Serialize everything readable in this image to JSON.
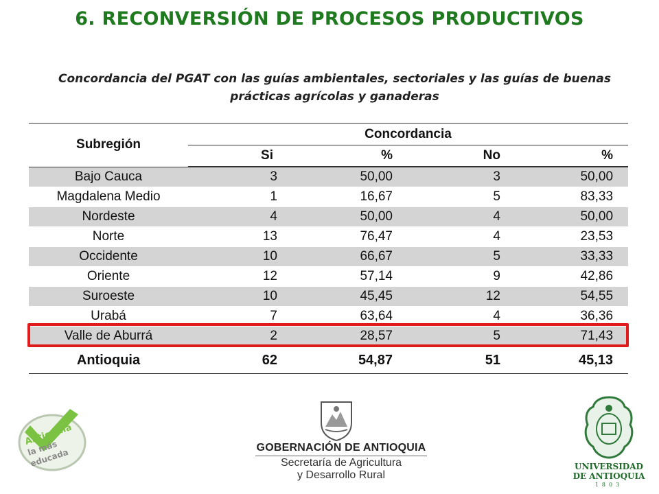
{
  "page": {
    "title": "6. RECONVERSIÓN DE PROCESOS PRODUCTIVOS",
    "subtitle": "Concordancia del PGAT con las guías ambientales, sectoriales y las guías de buenas prácticas agrícolas y ganaderas"
  },
  "table": {
    "header": {
      "subregion": "Subregión",
      "concordancia": "Concordancia",
      "si": "Si",
      "pct1": "%",
      "no": "No",
      "pct2": "%"
    },
    "rows": [
      {
        "region": "Bajo Cauca",
        "si": "3",
        "pct_si": "50,00",
        "no": "3",
        "pct_no": "50,00"
      },
      {
        "region": "Magdalena Medio",
        "si": "1",
        "pct_si": "16,67",
        "no": "5",
        "pct_no": "83,33"
      },
      {
        "region": "Nordeste",
        "si": "4",
        "pct_si": "50,00",
        "no": "4",
        "pct_no": "50,00"
      },
      {
        "region": "Norte",
        "si": "13",
        "pct_si": "76,47",
        "no": "4",
        "pct_no": "23,53"
      },
      {
        "region": "Occidente",
        "si": "10",
        "pct_si": "66,67",
        "no": "5",
        "pct_no": "33,33"
      },
      {
        "region": "Oriente",
        "si": "12",
        "pct_si": "57,14",
        "no": "9",
        "pct_no": "42,86"
      },
      {
        "region": "Suroeste",
        "si": "10",
        "pct_si": "45,45",
        "no": "12",
        "pct_no": "54,55"
      },
      {
        "region": "Urabá",
        "si": "7",
        "pct_si": "63,64",
        "no": "4",
        "pct_no": "36,36"
      },
      {
        "region": "Valle de Aburrá",
        "si": "2",
        "pct_si": "28,57",
        "no": "5",
        "pct_no": "71,43"
      }
    ],
    "total": {
      "region": "Antioquia",
      "si": "62",
      "pct_si": "54,87",
      "no": "51",
      "pct_no": "45,13"
    }
  },
  "logos": {
    "antioquia": {
      "line1": "Antioquia",
      "line2": "la más",
      "line3": "educada"
    },
    "gobernacion": {
      "line1": "GOBERNACIÓN DE ANTIOQUIA",
      "line2": "Secretaría de Agricultura",
      "line3": "y Desarrollo Rural"
    },
    "universidad": {
      "line1": "UNIVERSIDAD",
      "line2": "DE ANTIOQUIA",
      "line3": "1803"
    }
  },
  "colors": {
    "title": "#1f7a1f",
    "highlight": "#e01b1b",
    "shade": "#d4d4d4",
    "brand_green": "#7cc242"
  }
}
